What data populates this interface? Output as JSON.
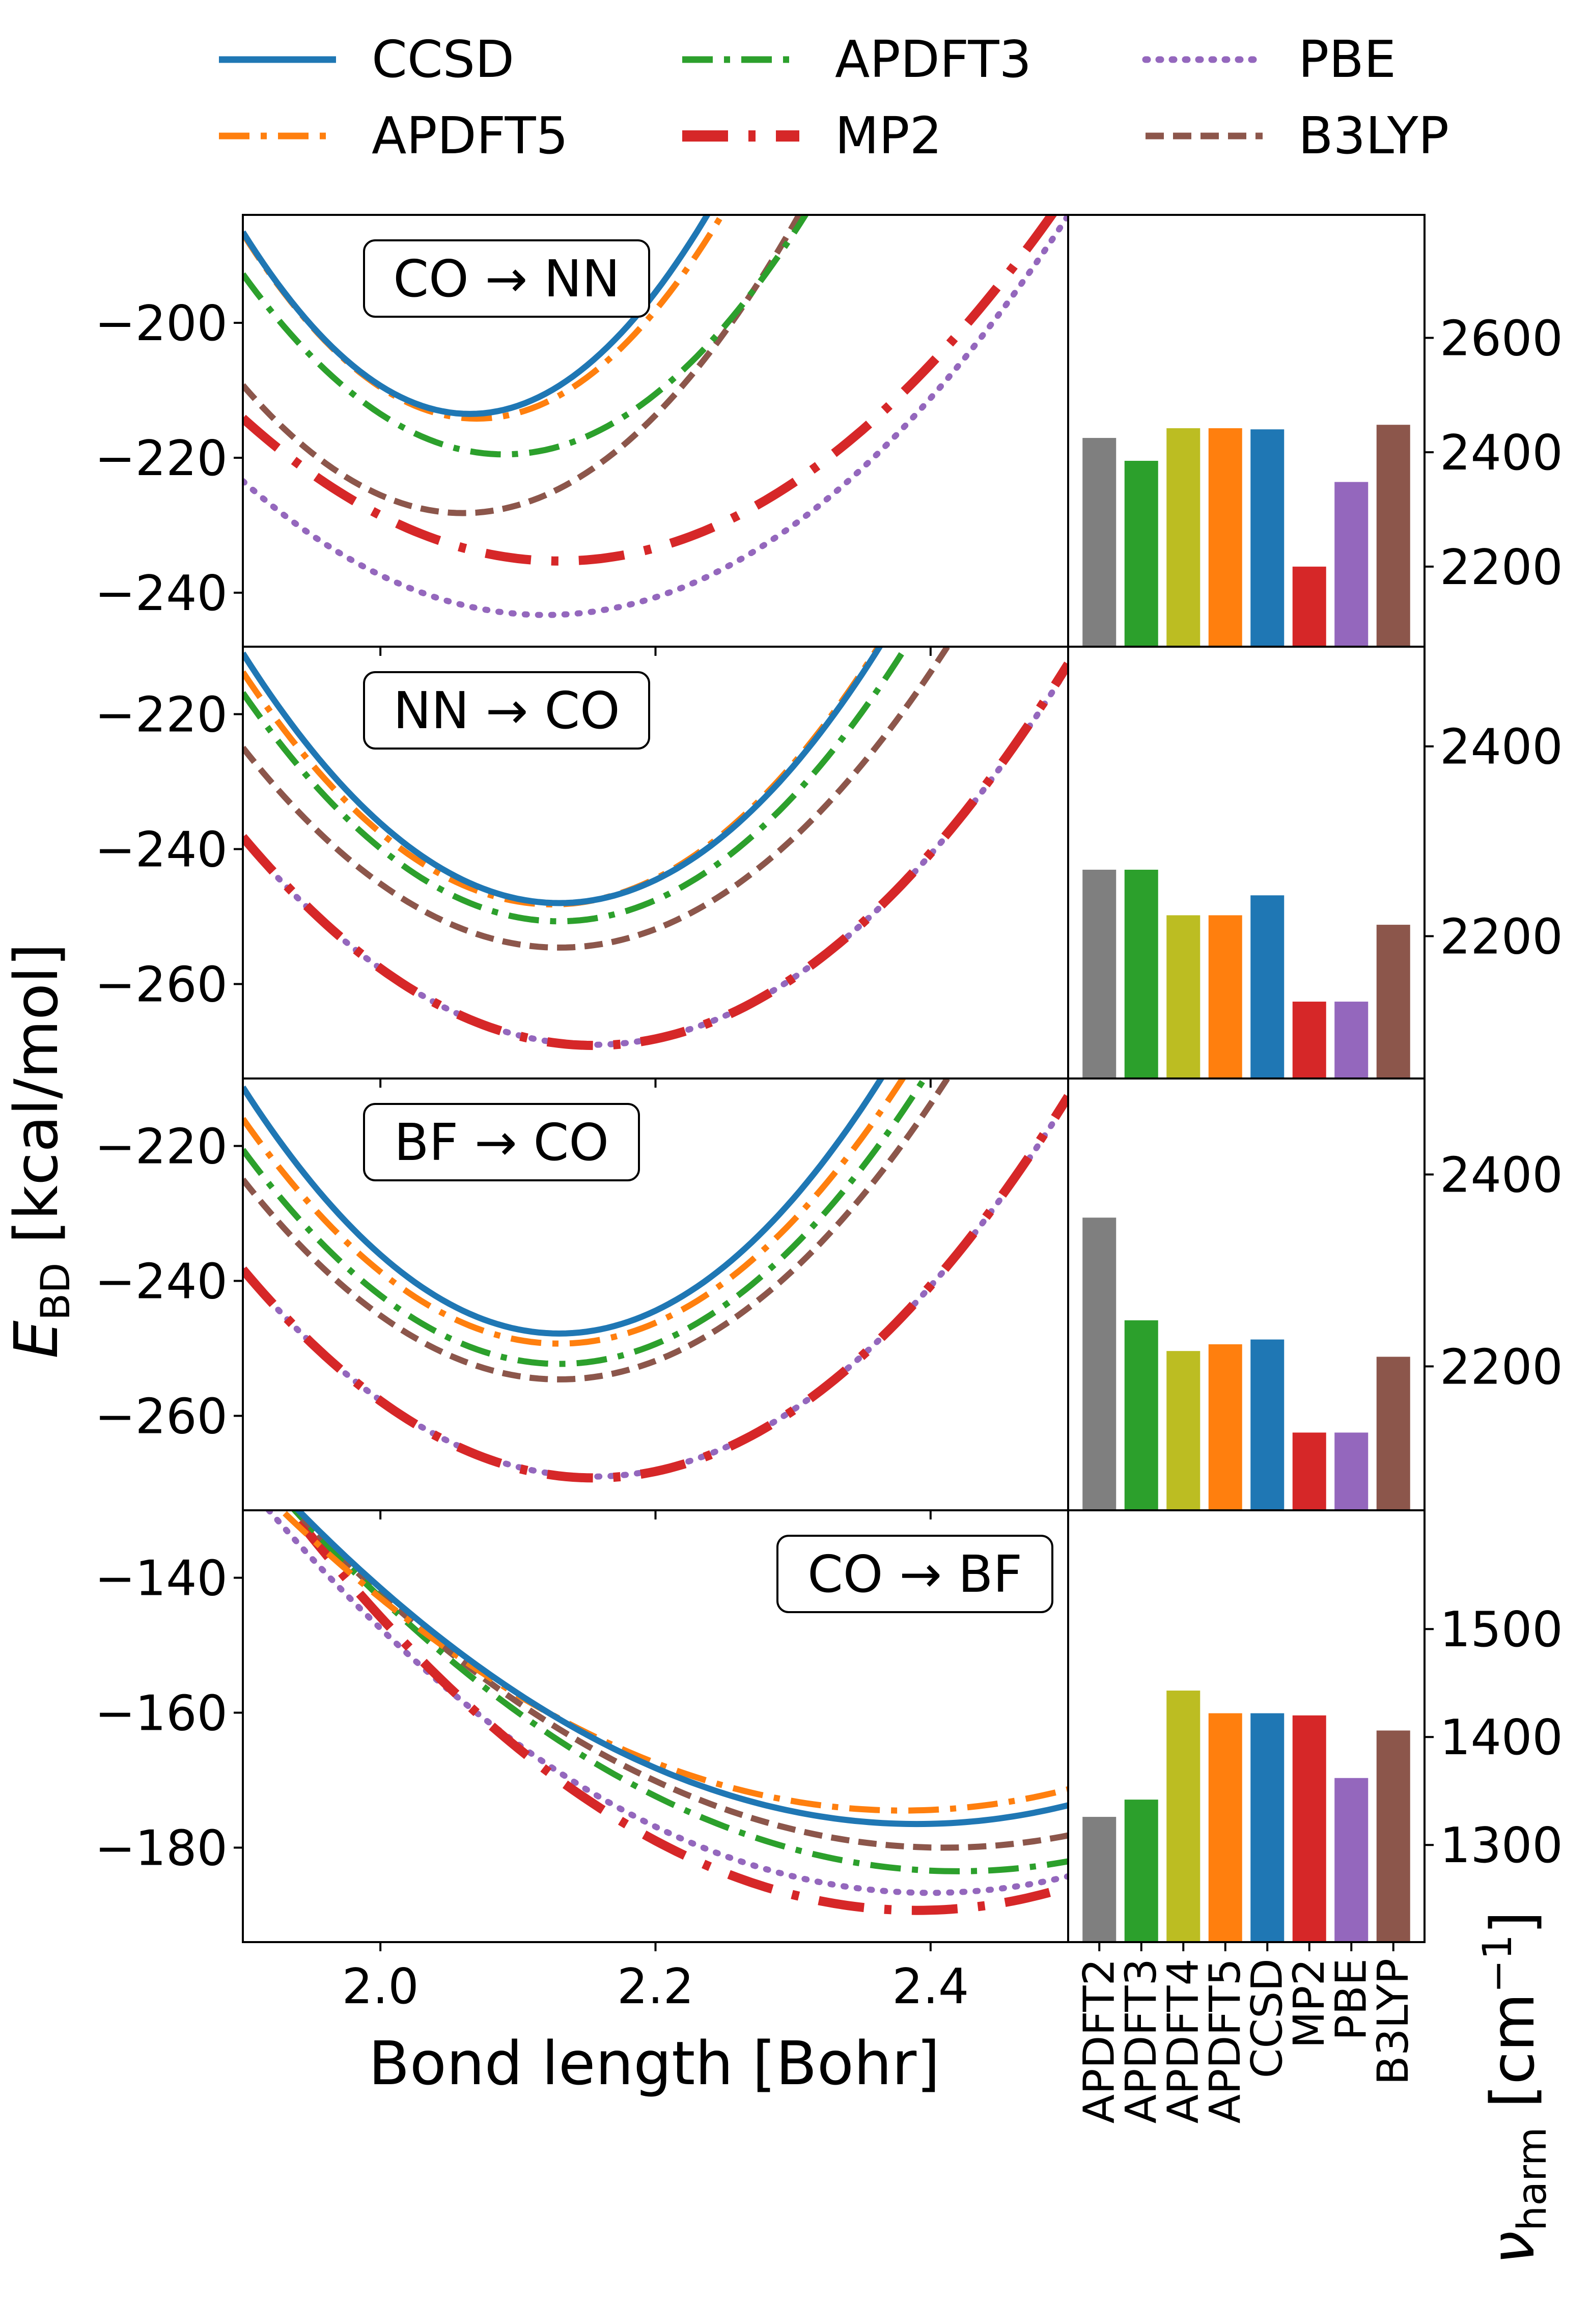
{
  "legend": {
    "entries": [
      {
        "name": "CCSD",
        "color": "#1f77b4",
        "style": "solid"
      },
      {
        "name": "APDFT3",
        "color": "#2ca02c",
        "style": "dashdot"
      },
      {
        "name": "PBE",
        "color": "#9467bd",
        "style": "dotted"
      },
      {
        "name": "APDFT5",
        "color": "#ff7f0e",
        "style": "dashdot"
      },
      {
        "name": "MP2",
        "color": "#d62728",
        "style": "dashdot"
      },
      {
        "name": "B3LYP",
        "color": "#8c564b",
        "style": "dashed"
      }
    ]
  },
  "axes": {
    "xlabel": "Bond length [Bohr]",
    "ylabel_main": "E",
    "ylabel_sub": "BD",
    "ylabel_rest": " [kcal/mol]",
    "right_ylabel_main": "ν",
    "right_ylabel_sub": "harm",
    "right_ylabel_rest": " [cm",
    "right_ylabel_sup": "−1",
    "right_ylabel_close": "]",
    "xticks": [
      "2.0",
      "2.2",
      "2.4"
    ]
  },
  "chart_data": [
    {
      "type": "line",
      "title": "CO → NN",
      "xlim": [
        1.9,
        2.5
      ],
      "ylim": [
        -248,
        -184
      ],
      "yticks": [
        -200,
        -220,
        -240
      ],
      "ytick_labels": [
        "−200",
        "−220",
        "−240"
      ],
      "series": [
        {
          "name": "CCSD",
          "color": "#1f77b4",
          "style": "solid",
          "min_x": 2.065,
          "min_y": -213.5,
          "k": 990
        },
        {
          "name": "APDFT5",
          "color": "#ff7f0e",
          "style": "dashdot",
          "min_x": 2.07,
          "min_y": -214.2,
          "k": 950
        },
        {
          "name": "APDFT3",
          "color": "#2ca02c",
          "style": "dashdot",
          "min_x": 2.09,
          "min_y": -219.5,
          "k": 740
        },
        {
          "name": "B3LYP",
          "color": "#8c564b",
          "style": "dashed",
          "min_x": 2.06,
          "min_y": -228.2,
          "k": 740
        },
        {
          "name": "MP2",
          "color": "#d62728",
          "style": "dashdot",
          "min_x": 2.13,
          "min_y": -235.3,
          "k": 400
        },
        {
          "name": "PBE",
          "color": "#9467bd",
          "style": "dotted",
          "min_x": 2.12,
          "min_y": -243.3,
          "k": 410
        }
      ]
    },
    {
      "type": "line",
      "title": "NN → CO",
      "xlim": [
        1.9,
        2.5
      ],
      "ylim": [
        -274,
        -210
      ],
      "yticks": [
        -220,
        -240,
        -260
      ],
      "ytick_labels": [
        "−220",
        "−240",
        "−260"
      ],
      "series": [
        {
          "name": "CCSD",
          "color": "#1f77b4",
          "style": "solid",
          "min_x": 2.13,
          "min_y": -248.0,
          "k": 700
        },
        {
          "name": "APDFT5",
          "color": "#ff7f0e",
          "style": "dashdot",
          "min_x": 2.125,
          "min_y": -248.2,
          "k": 680
        },
        {
          "name": "APDFT3",
          "color": "#2ca02c",
          "style": "dashdot",
          "min_x": 2.13,
          "min_y": -250.7,
          "k": 640
        },
        {
          "name": "B3LYP",
          "color": "#8c564b",
          "style": "dashed",
          "min_x": 2.13,
          "min_y": -254.6,
          "k": 560
        },
        {
          "name": "MP2",
          "color": "#d62728",
          "style": "dashdot",
          "min_x": 2.155,
          "min_y": -269.1,
          "k": 475
        },
        {
          "name": "PBE",
          "color": "#9467bd",
          "style": "dotted",
          "min_x": 2.155,
          "min_y": -269.0,
          "k": 470
        }
      ]
    },
    {
      "type": "line",
      "title": "BF → CO",
      "xlim": [
        1.9,
        2.5
      ],
      "ylim": [
        -274,
        -210
      ],
      "yticks": [
        -220,
        -240,
        -260
      ],
      "ytick_labels": [
        "−220",
        "−240",
        "−260"
      ],
      "series": [
        {
          "name": "CCSD",
          "color": "#1f77b4",
          "style": "solid",
          "min_x": 2.13,
          "min_y": -247.8,
          "k": 690
        },
        {
          "name": "APDFT5",
          "color": "#ff7f0e",
          "style": "dashdot",
          "min_x": 2.13,
          "min_y": -249.3,
          "k": 630
        },
        {
          "name": "APDFT3",
          "color": "#2ca02c",
          "style": "dashdot",
          "min_x": 2.13,
          "min_y": -252.3,
          "k": 600
        },
        {
          "name": "B3LYP",
          "color": "#8c564b",
          "style": "dashed",
          "min_x": 2.13,
          "min_y": -254.6,
          "k": 560
        },
        {
          "name": "MP2",
          "color": "#d62728",
          "style": "dashdot",
          "min_x": 2.155,
          "min_y": -269.2,
          "k": 475
        },
        {
          "name": "PBE",
          "color": "#9467bd",
          "style": "dotted",
          "min_x": 2.155,
          "min_y": -269.0,
          "k": 470
        }
      ]
    },
    {
      "type": "line",
      "title": "CO → BF",
      "xlim": [
        1.9,
        2.5
      ],
      "ylim": [
        -194,
        -130
      ],
      "yticks": [
        -140,
        -160,
        -180
      ],
      "ytick_labels": [
        "−140",
        "−160",
        "−180"
      ],
      "series": [
        {
          "name": "CCSD",
          "color": "#1f77b4",
          "style": "solid",
          "min_x": 2.39,
          "min_y": -176.5,
          "k": 230
        },
        {
          "name": "APDFT5",
          "color": "#ff7f0e",
          "style": "dashdot",
          "min_x": 2.38,
          "min_y": -174.5,
          "k": 218
        },
        {
          "name": "APDFT3",
          "color": "#2ca02c",
          "style": "dashdot",
          "min_x": 2.42,
          "min_y": -183.5,
          "k": 230
        },
        {
          "name": "B3LYP",
          "color": "#8c564b",
          "style": "dashed",
          "min_x": 2.41,
          "min_y": -180.0,
          "k": 224
        },
        {
          "name": "MP2",
          "color": "#d62728",
          "style": "dashdot",
          "min_x": 2.39,
          "min_y": -189.3,
          "k": 286
        },
        {
          "name": "PBE",
          "color": "#9467bd",
          "style": "dotted",
          "min_x": 2.4,
          "min_y": -186.7,
          "k": 245
        }
      ]
    },
    {
      "type": "bar",
      "categories": [
        "APDFT2",
        "APDFT3",
        "APDFT4",
        "APDFT5",
        "CCSD",
        "MP2",
        "PBE",
        "B3LYP"
      ],
      "colors": [
        "#7f7f7f",
        "#2ca02c",
        "#bcbd22",
        "#ff7f0e",
        "#1f77b4",
        "#d62728",
        "#9467bd",
        "#8c564b"
      ],
      "ylim": [
        2060,
        2815
      ],
      "yticks": [
        2200,
        2400,
        2600
      ],
      "values": [
        2425,
        2385,
        2442,
        2442,
        2440,
        2200,
        2348,
        2448
      ]
    },
    {
      "type": "bar",
      "categories": [
        "APDFT2",
        "APDFT3",
        "APDFT4",
        "APDFT5",
        "CCSD",
        "MP2",
        "PBE",
        "B3LYP"
      ],
      "colors": [
        "#7f7f7f",
        "#2ca02c",
        "#bcbd22",
        "#ff7f0e",
        "#1f77b4",
        "#d62728",
        "#9467bd",
        "#8c564b"
      ],
      "ylim": [
        2050,
        2505
      ],
      "yticks": [
        2200,
        2400
      ],
      "values": [
        2270,
        2270,
        2222,
        2222,
        2243,
        2131,
        2131,
        2212
      ]
    },
    {
      "type": "bar",
      "categories": [
        "APDFT2",
        "APDFT3",
        "APDFT4",
        "APDFT5",
        "CCSD",
        "MP2",
        "PBE",
        "B3LYP"
      ],
      "colors": [
        "#7f7f7f",
        "#2ca02c",
        "#bcbd22",
        "#ff7f0e",
        "#1f77b4",
        "#d62728",
        "#9467bd",
        "#8c564b"
      ],
      "ylim": [
        2050,
        2500
      ],
      "yticks": [
        2200,
        2400
      ],
      "values": [
        2355,
        2248,
        2216,
        2223,
        2228,
        2131,
        2131,
        2210
      ]
    },
    {
      "type": "bar",
      "categories": [
        "APDFT2",
        "APDFT3",
        "APDFT4",
        "APDFT5",
        "CCSD",
        "MP2",
        "PBE",
        "B3LYP"
      ],
      "colors": [
        "#7f7f7f",
        "#2ca02c",
        "#bcbd22",
        "#ff7f0e",
        "#1f77b4",
        "#d62728",
        "#9467bd",
        "#8c564b"
      ],
      "ylim": [
        1210,
        1610
      ],
      "yticks": [
        1300,
        1400,
        1500
      ],
      "values": [
        1326,
        1342,
        1443,
        1422,
        1422,
        1420,
        1362,
        1406
      ]
    }
  ]
}
